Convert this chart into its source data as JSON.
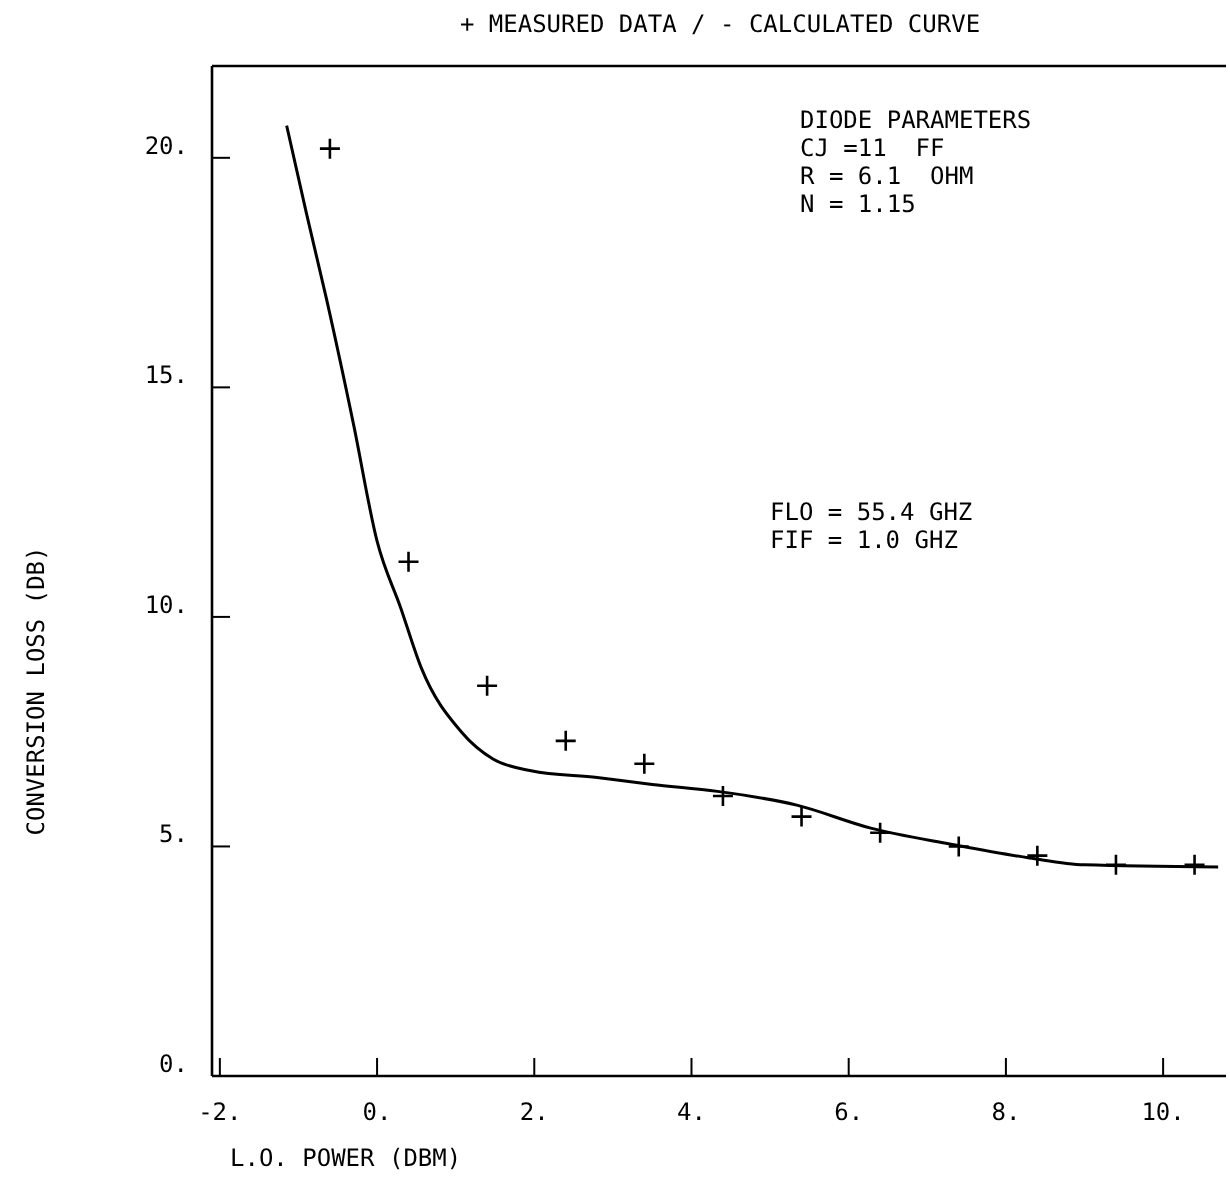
{
  "chart_data": {
    "type": "line",
    "title": "+ MEASURED DATA / - CALCULATED CURVE",
    "xlabel": "L.O. POWER (DBM)",
    "ylabel": "CONVERSION LOSS (DB)",
    "xlim": [
      -2.1,
      10.8
    ],
    "ylim": [
      0,
      22
    ],
    "xticks": [
      {
        "value": -2,
        "label": "-2."
      },
      {
        "value": 0,
        "label": "0."
      },
      {
        "value": 2,
        "label": "2."
      },
      {
        "value": 4,
        "label": "4."
      },
      {
        "value": 6,
        "label": "6."
      },
      {
        "value": 8,
        "label": "8."
      },
      {
        "value": 10,
        "label": "10."
      }
    ],
    "yticks": [
      {
        "value": 0,
        "label": "0."
      },
      {
        "value": 5,
        "label": "5."
      },
      {
        "value": 10,
        "label": "10."
      },
      {
        "value": 15,
        "label": "15."
      },
      {
        "value": 20,
        "label": "20."
      }
    ],
    "grid": false,
    "annotations": [
      "DIODE PARAMETERS",
      "CJ =11  FF",
      "R = 6.1  OHM",
      "N = 1.15",
      "FLO = 55.4 GHZ",
      "FIF = 1.0 GHZ"
    ],
    "series": [
      {
        "type": "scatter",
        "color": "#000000",
        "marker": "cross",
        "x": [
          -0.6,
          0.4,
          1.4,
          2.4,
          3.4,
          4.4,
          5.4,
          6.4,
          7.4,
          8.4,
          9.4,
          10.4
        ],
        "values": [
          20.2,
          11.2,
          8.5,
          7.3,
          6.8,
          6.1,
          5.65,
          5.3,
          5.0,
          4.8,
          4.6,
          4.6
        ]
      },
      {
        "color": "#000000",
        "marker": "none",
        "line_style": "solid",
        "x": [
          -1.15,
          -0.9,
          -0.64,
          -0.3,
          0,
          0.3,
          0.56,
          1.07,
          1.48,
          1.96,
          2.8,
          3.5,
          4.33,
          5.34,
          6.28,
          7.3,
          8.3,
          9,
          10.7
        ],
        "values": [
          20.7,
          18.8,
          16.9,
          14.2,
          11.65,
          10.2,
          8.9,
          7.5,
          6.9,
          6.65,
          6.5,
          6.35,
          6.2,
          5.9,
          5.4,
          5.05,
          4.75,
          4.6,
          4.55
        ]
      }
    ]
  }
}
